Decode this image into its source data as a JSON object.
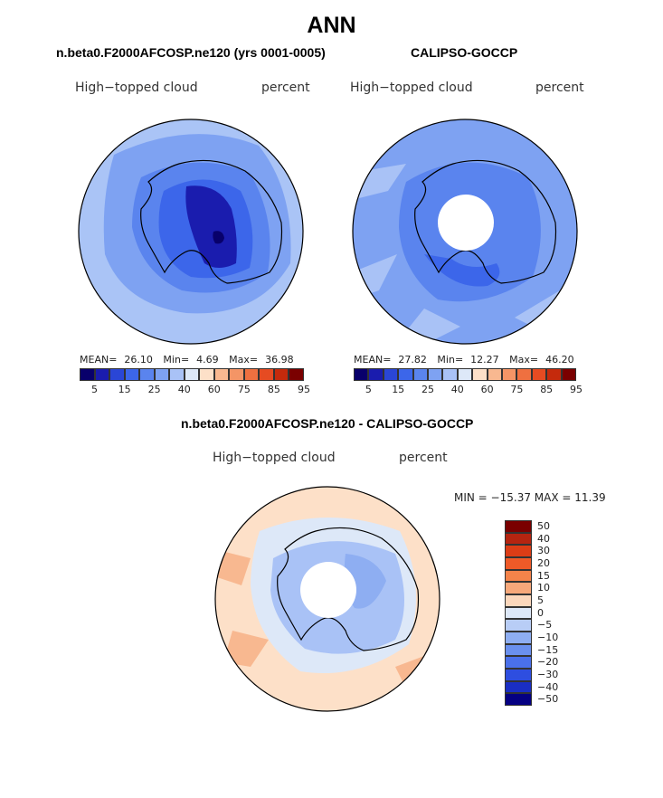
{
  "title": "ANN",
  "panels": {
    "model": {
      "title": "n.beta0.F2000AFCOSP.ne120 (yrs 0001-0005)",
      "left_label": "High−topped cloud",
      "right_label": "percent",
      "mean_label": "MEAN=",
      "mean": "26.10",
      "min_label": "Min=",
      "min": "4.69",
      "max_label": "Max=",
      "max": "36.98"
    },
    "obs": {
      "title": "CALIPSO-GOCCP",
      "left_label": "High−topped cloud",
      "right_label": "percent",
      "mean_label": "MEAN=",
      "mean": "27.82",
      "min_label": "Min=",
      "min": "12.27",
      "max_label": "Max=",
      "max": "46.20"
    },
    "diff": {
      "title": "n.beta0.F2000AFCOSP.ne120 - CALIPSO-GOCCP",
      "left_label": "High−topped cloud",
      "right_label": "percent",
      "minmax": "MIN = −15.37 MAX =  11.39"
    }
  },
  "colorbar_abs": {
    "colors": [
      "#08006b",
      "#1a1cae",
      "#2a46d6",
      "#3c66ea",
      "#5a84ee",
      "#7ea2f2",
      "#a9c2f6",
      "#dde8f8",
      "#fde0c8",
      "#f8b890",
      "#f49566",
      "#ef7040",
      "#e64b22",
      "#c52a0c",
      "#7a0000"
    ],
    "tick_labels": [
      "5",
      "15",
      "25",
      "40",
      "60",
      "75",
      "85",
      "95"
    ]
  },
  "colorbar_diff": {
    "colors": [
      "#7a0000",
      "#b52410",
      "#dc3d16",
      "#ef5a28",
      "#f4834a",
      "#f7a87a",
      "#fbd7bc",
      "#dde8f8",
      "#b8cdf6",
      "#8eaef2",
      "#6a90ee",
      "#4a70ea",
      "#2e4ee0",
      "#1a2ec4",
      "#050082"
    ],
    "labels": [
      "50",
      "40",
      "30",
      "20",
      "15",
      "10",
      "5",
      "0",
      "−5",
      "−10",
      "−15",
      "−20",
      "−30",
      "−40",
      "−50"
    ]
  },
  "colors": {
    "coast": "#000000",
    "ocean_model": "#aac4f6",
    "ocean_obs": "#7ea2f2",
    "ocean_diff": "#fde0c8"
  }
}
